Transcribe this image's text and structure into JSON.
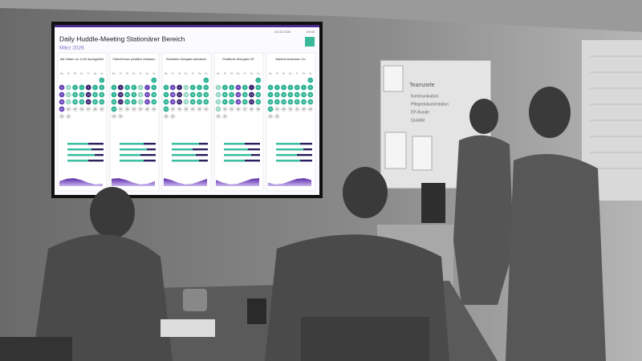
{
  "header": {
    "title": "Daily Huddle-Meeting Stationärer Bereich",
    "subtitle": "März 2026",
    "date": "24.02.2026",
    "time": "09:40"
  },
  "calendar": {
    "weekdays": [
      "Mo",
      "Di",
      "Mi",
      "Do",
      "Fr",
      "Sa",
      "So"
    ],
    "days": [
      "1",
      "2",
      "3",
      "4",
      "5",
      "6",
      "7",
      "8",
      "9",
      "10",
      "11",
      "12",
      "13",
      "14",
      "15",
      "16",
      "17",
      "18",
      "19",
      "20",
      "21",
      "22",
      "23",
      "24",
      "25",
      "26",
      "27",
      "28",
      "29",
      "30",
      "31"
    ]
  },
  "panels": [
    {
      "title": "Alle Visiten vor 11:00 durchgeführt"
    },
    {
      "title": "Patient*innen pünktlich entlassen"
    },
    {
      "title": "Pünktliche Übergabe Aufnahme"
    },
    {
      "title": "Pünktliche Übergabe OP"
    },
    {
      "title": "Wartend Ambulanz <1h"
    }
  ],
  "whiteboard": {
    "title": "Teamziele",
    "items": [
      "Kommunikation",
      "Pflegedokumentation",
      "EP-Runde",
      "Qualität"
    ]
  }
}
